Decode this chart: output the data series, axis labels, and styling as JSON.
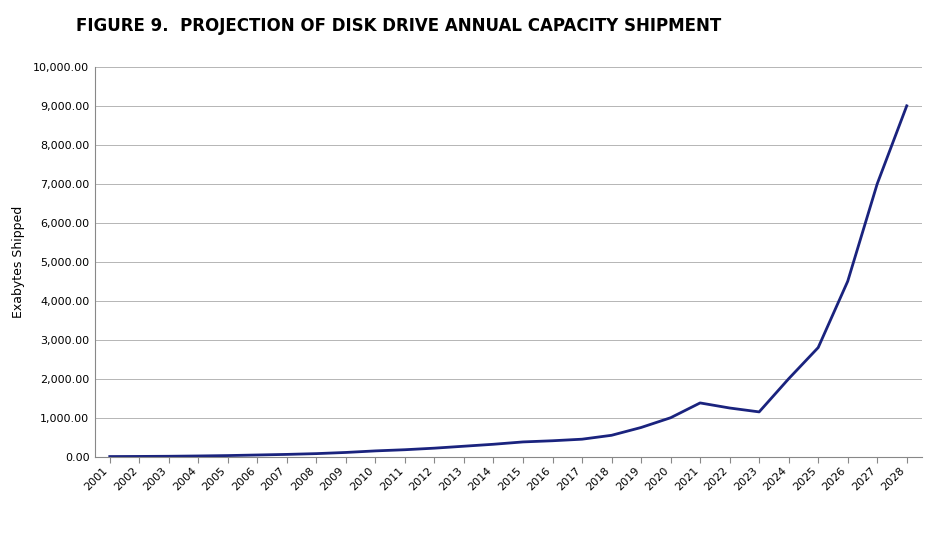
{
  "title": "FIGURE 9.  PROJECTION OF DISK DRIVE ANNUAL CAPACITY SHIPMENT",
  "ylabel": "Exabytes Shipped",
  "line_color": "#1a237e",
  "line_width": 2.0,
  "background_color": "#ffffff",
  "grid_color": "#aaaaaa",
  "years": [
    2001,
    2002,
    2003,
    2004,
    2005,
    2006,
    2007,
    2008,
    2009,
    2010,
    2011,
    2012,
    2013,
    2014,
    2015,
    2016,
    2017,
    2018,
    2019,
    2020,
    2021,
    2022,
    2023,
    2024,
    2025,
    2026,
    2027,
    2028
  ],
  "values": [
    5,
    8,
    12,
    20,
    30,
    45,
    60,
    80,
    110,
    150,
    180,
    220,
    270,
    320,
    380,
    410,
    450,
    550,
    750,
    1000,
    1380,
    1250,
    1150,
    2000,
    2800,
    4500,
    7000,
    9000
  ],
  "ylim": [
    0,
    10000
  ],
  "xlim": [
    2001,
    2028
  ],
  "yticks": [
    0,
    1000,
    2000,
    3000,
    4000,
    5000,
    6000,
    7000,
    8000,
    9000,
    10000
  ],
  "title_fontsize": 12,
  "label_fontsize": 9,
  "tick_fontsize": 8
}
